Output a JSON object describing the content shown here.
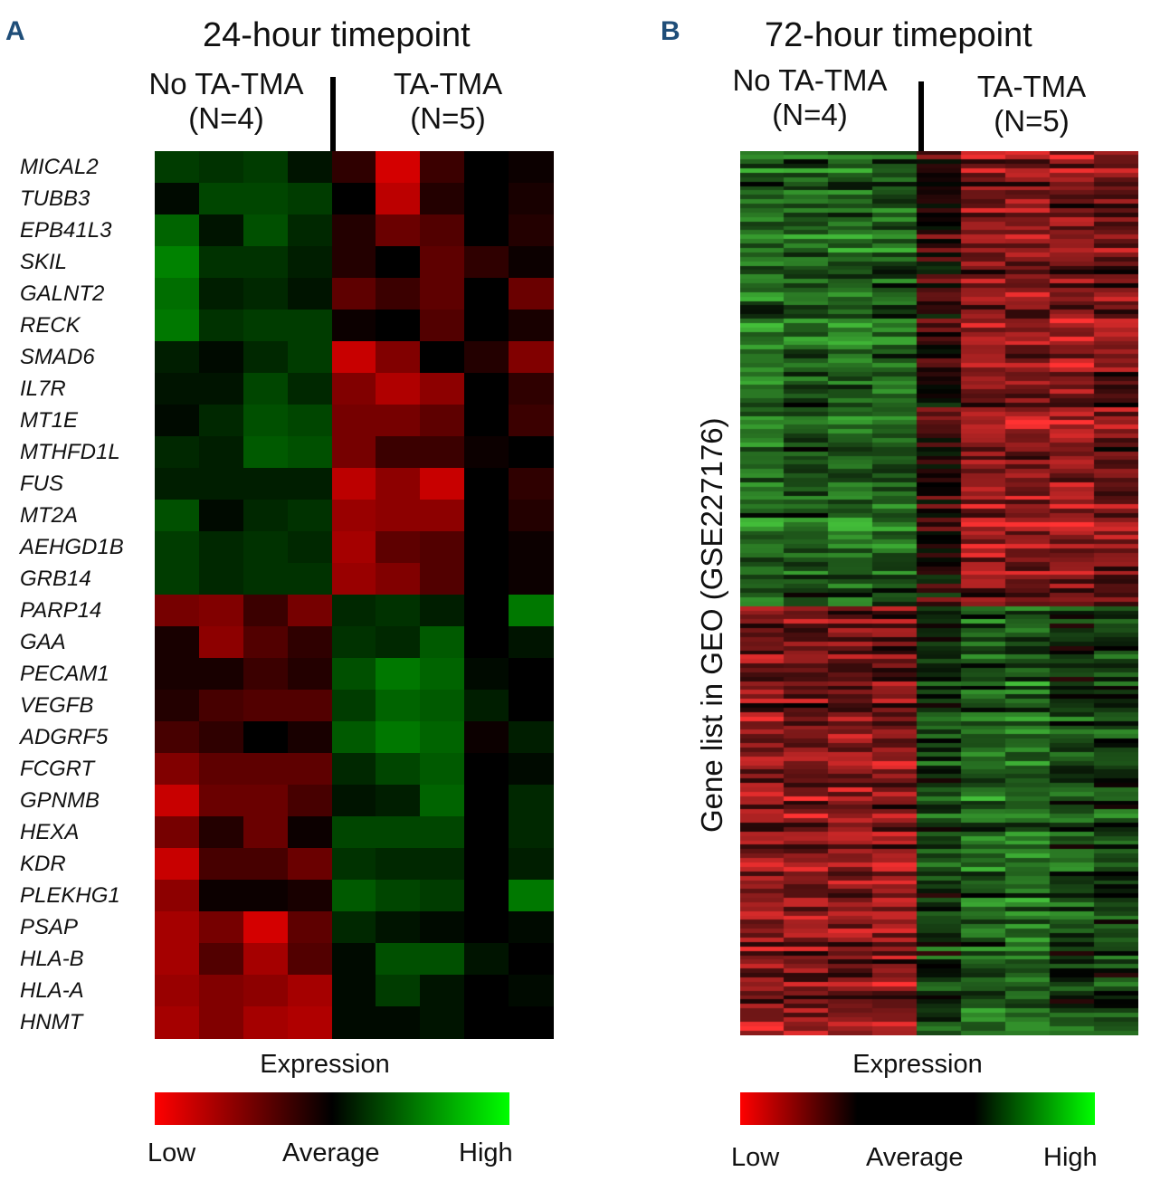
{
  "colors": {
    "low": "#ff0000",
    "average": "#000000",
    "high": "#00ff00"
  },
  "panel_a": {
    "letter": "A",
    "title": "24-hour timepoint",
    "group_left": [
      "No TA-TMA",
      "(N=4)"
    ],
    "group_right": [
      "TA-TMA",
      "(N=5)"
    ],
    "legend_title": "Expression",
    "legend_low": "Low",
    "legend_avg": "Average",
    "legend_high": "High"
  },
  "panel_b": {
    "letter": "B",
    "title": "72-hour timepoint",
    "group_left": [
      "No TA-TMA",
      "(N=4)"
    ],
    "group_right": [
      "TA-TMA",
      "(N=5)"
    ],
    "ylabel": "Gene list in  GEO (GSE227176)",
    "legend_title": "Expression",
    "legend_low": "Low",
    "legend_avg": "Average",
    "legend_high": "High"
  },
  "chart_data": [
    {
      "type": "heatmap",
      "title": "24-hour timepoint",
      "columns": [
        "No TA-TMA 1",
        "No TA-TMA 2",
        "No TA-TMA 3",
        "No TA-TMA 4",
        "TA-TMA 1",
        "TA-TMA 2",
        "TA-TMA 3",
        "TA-TMA 4",
        "TA-TMA 5"
      ],
      "rows": [
        "MICAL2",
        "TUBB3",
        "EPB41L3",
        "SKIL",
        "GALNT2",
        "RECK",
        "SMAD6",
        "IL7R",
        "MT1E",
        "MTHFD1L",
        "FUS",
        "MT2A",
        "AEHGD1B",
        "GRB14",
        "PARP14",
        "GAA",
        "PECAM1",
        "VEGFB",
        "ADGRF5",
        "FCGRT",
        "GPNMB",
        "HEXA",
        "KDR",
        "PLEKHG1",
        "PSAP",
        "HLA-B",
        "HLA-A",
        "HNMT"
      ],
      "value_scale": "-1 = Low (red), 0 = Average (black), 1 = High (green)",
      "values": [
        [
          0.3,
          0.25,
          0.3,
          0.1,
          -0.2,
          -0.9,
          -0.25,
          0,
          -0.05
        ],
        [
          0.05,
          0.35,
          0.35,
          0.3,
          0,
          -0.8,
          -0.15,
          0,
          -0.1
        ],
        [
          0.5,
          0.1,
          0.4,
          0.2,
          -0.15,
          -0.45,
          -0.35,
          0,
          -0.15
        ],
        [
          0.65,
          0.25,
          0.25,
          0.15,
          -0.15,
          0,
          -0.4,
          -0.2,
          -0.05
        ],
        [
          0.55,
          0.15,
          0.2,
          0.1,
          -0.4,
          -0.25,
          -0.4,
          0,
          -0.45
        ],
        [
          0.6,
          0.25,
          0.3,
          0.3,
          -0.05,
          0,
          -0.35,
          0,
          -0.1
        ],
        [
          0.15,
          0.05,
          0.2,
          0.3,
          -0.85,
          -0.55,
          0,
          -0.15,
          -0.55
        ],
        [
          0.1,
          0.1,
          0.35,
          0.2,
          -0.55,
          -0.75,
          -0.6,
          0,
          -0.2
        ],
        [
          0.05,
          0.2,
          0.4,
          0.35,
          -0.5,
          -0.5,
          -0.4,
          0,
          -0.25
        ],
        [
          0.2,
          0.15,
          0.45,
          0.4,
          -0.5,
          -0.25,
          -0.25,
          -0.05,
          0
        ],
        [
          0.15,
          0.15,
          0.15,
          0.15,
          -0.8,
          -0.6,
          -0.85,
          0,
          -0.2
        ],
        [
          0.4,
          0.05,
          0.2,
          0.25,
          -0.65,
          -0.6,
          -0.6,
          0,
          -0.15
        ],
        [
          0.3,
          0.2,
          0.25,
          0.2,
          -0.7,
          -0.4,
          -0.35,
          0,
          -0.05
        ],
        [
          0.3,
          0.2,
          0.25,
          0.25,
          -0.65,
          -0.55,
          -0.35,
          0,
          -0.05
        ],
        [
          -0.5,
          -0.55,
          -0.25,
          -0.5,
          0.2,
          0.25,
          0.15,
          0,
          0.6
        ],
        [
          -0.1,
          -0.6,
          -0.35,
          -0.2,
          0.25,
          0.2,
          0.45,
          0,
          0.1
        ],
        [
          -0.1,
          -0.1,
          -0.25,
          -0.15,
          0.4,
          0.6,
          0.5,
          0.05,
          0
        ],
        [
          -0.15,
          -0.3,
          -0.35,
          -0.35,
          0.3,
          0.5,
          0.45,
          0.15,
          0
        ],
        [
          -0.3,
          -0.2,
          0,
          -0.1,
          0.45,
          0.6,
          0.5,
          -0.05,
          0.15
        ],
        [
          -0.55,
          -0.4,
          -0.4,
          -0.4,
          0.2,
          0.35,
          0.45,
          0,
          0.05
        ],
        [
          -0.85,
          -0.45,
          -0.45,
          -0.3,
          0.1,
          0.15,
          0.5,
          0,
          0.2
        ],
        [
          -0.5,
          -0.15,
          -0.45,
          -0.05,
          0.35,
          0.35,
          0.35,
          0,
          0.2
        ],
        [
          -0.85,
          -0.3,
          -0.3,
          -0.45,
          0.25,
          0.2,
          0.2,
          0,
          0.15
        ],
        [
          -0.6,
          -0.05,
          -0.05,
          -0.1,
          0.45,
          0.35,
          0.3,
          0,
          0.6
        ],
        [
          -0.7,
          -0.5,
          -0.9,
          -0.4,
          0.2,
          0.1,
          0.05,
          0,
          0.05
        ],
        [
          -0.7,
          -0.35,
          -0.7,
          -0.35,
          0.05,
          0.4,
          0.4,
          0.1,
          0
        ],
        [
          -0.65,
          -0.55,
          -0.6,
          -0.7,
          0.05,
          0.3,
          0.1,
          0,
          0.05
        ],
        [
          -0.7,
          -0.55,
          -0.7,
          -0.75,
          0.05,
          0.05,
          0.1,
          0,
          0
        ]
      ],
      "legend": {
        "title": "Expression",
        "low": "Low",
        "average": "Average",
        "high": "High"
      }
    },
    {
      "type": "heatmap",
      "title": "72-hour timepoint",
      "ylabel": "Gene list in  GEO (GSE227176)",
      "columns": [
        "No TA-TMA 1",
        "No TA-TMA 2",
        "No TA-TMA 3",
        "No TA-TMA 4",
        "TA-TMA 1",
        "TA-TMA 2",
        "TA-TMA 3",
        "TA-TMA 4",
        "TA-TMA 5"
      ],
      "row_count": 200,
      "value_scale": "-1 = Low (red), 0 = Average (black), 1 = High (green)",
      "block_means": [
        {
          "rows": [
            0,
            103
          ],
          "means": [
            0.5,
            0.45,
            0.5,
            0.45,
            -0.15,
            -0.55,
            -0.55,
            -0.55,
            -0.45
          ]
        },
        {
          "rows": [
            103,
            200
          ],
          "means": [
            -0.55,
            -0.5,
            -0.5,
            -0.5,
            0.25,
            0.45,
            0.5,
            0.3,
            0.3
          ]
        }
      ],
      "legend": {
        "title": "Expression",
        "low": "Low",
        "average": "Average",
        "high": "High"
      }
    }
  ]
}
